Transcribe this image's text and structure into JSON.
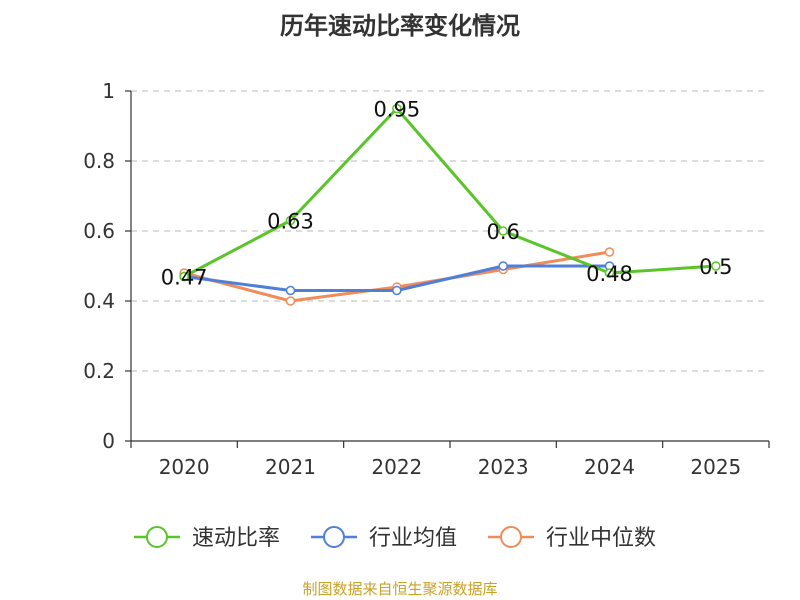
{
  "chart_data": {
    "type": "line",
    "title": "历年速动比率变化情况",
    "categories": [
      "2020",
      "2021",
      "2022",
      "2023",
      "2024",
      "2025"
    ],
    "ylim": [
      0,
      1
    ],
    "yticks": [
      "0",
      "0.2",
      "0.4",
      "0.6",
      "0.8",
      "1"
    ],
    "grid": true,
    "legend_position": "bottom",
    "series": [
      {
        "name": "速动比率",
        "color": "#5ac42a",
        "values": [
          0.47,
          0.63,
          0.95,
          0.6,
          0.48,
          0.5
        ],
        "labels": [
          "0.47",
          "0.63",
          "0.95",
          "0.6",
          "0.48",
          "0.5"
        ]
      },
      {
        "name": "行业均值",
        "color": "#4f7fd6",
        "values": [
          0.47,
          0.43,
          0.43,
          0.5,
          0.5,
          null
        ]
      },
      {
        "name": "行业中位数",
        "color": "#f08c5a",
        "values": [
          0.48,
          0.4,
          0.44,
          0.49,
          0.54,
          null
        ]
      }
    ]
  },
  "source_text": "制图数据来自恒生聚源数据库"
}
